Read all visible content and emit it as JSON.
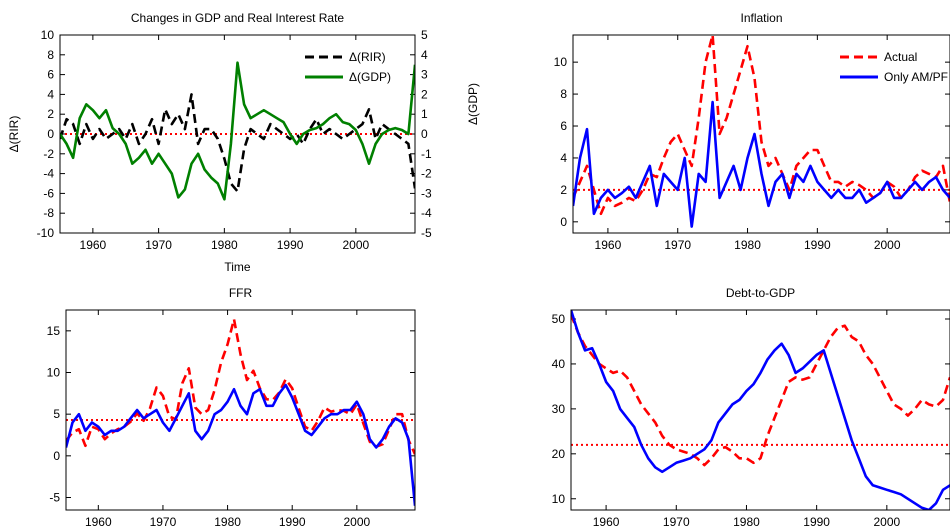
{
  "chart_data": [
    {
      "id": "gdp_rir",
      "type": "line",
      "title": "Changes in GDP and Real Interest Rate",
      "xlabel": "Time",
      "ylabel": "Δ(RIR)",
      "ylabel_right": "Δ(GDP)",
      "xlim": [
        1955,
        2009
      ],
      "ylim": [
        -10,
        10
      ],
      "ylim_right": [
        -5,
        5
      ],
      "xticks": [
        1960,
        1970,
        1980,
        1990,
        2000
      ],
      "yticks": [
        10,
        8,
        6,
        4,
        2,
        0,
        -2,
        -4,
        -6,
        -8,
        -10
      ],
      "yticks_right": [
        5,
        4,
        3,
        2,
        1,
        0,
        -1,
        -2,
        -3,
        -4,
        -5
      ],
      "legend_position": "top-right",
      "hline": {
        "y": 0,
        "color": "#ff0000",
        "style": "dotted"
      },
      "series": [
        {
          "name": "Δ(RIR)",
          "color": "#000000",
          "style": "dashed",
          "axis": "left",
          "x": [
            1955,
            1956,
            1957,
            1958,
            1959,
            1960,
            1961,
            1962,
            1963,
            1964,
            1965,
            1966,
            1967,
            1968,
            1969,
            1970,
            1971,
            1972,
            1973,
            1974,
            1975,
            1976,
            1977,
            1978,
            1979,
            1980,
            1981,
            1982,
            1983,
            1984,
            1985,
            1986,
            1987,
            1988,
            1989,
            1990,
            1991,
            1992,
            1993,
            1994,
            1995,
            1996,
            1997,
            1998,
            1999,
            2000,
            2001,
            2002,
            2003,
            2004,
            2005,
            2006,
            2007,
            2008,
            2009
          ],
          "values": [
            -0.5,
            1.5,
            1.0,
            -1.0,
            1.0,
            -0.5,
            0.5,
            -0.5,
            0.0,
            0.5,
            -0.5,
            1.0,
            -1.0,
            0.0,
            1.5,
            -1.0,
            2.5,
            1.0,
            2.0,
            0.5,
            4.0,
            -1.0,
            0.5,
            0.5,
            -0.5,
            -2.5,
            -5.0,
            -5.8,
            -1.5,
            0.5,
            0.0,
            -0.5,
            1.0,
            0.5,
            0.0,
            -0.5,
            0.0,
            -1.0,
            0.5,
            1.5,
            0.0,
            0.5,
            0.0,
            -0.5,
            0.0,
            0.5,
            1.0,
            2.5,
            -0.5,
            1.0,
            0.5,
            0.0,
            -0.5,
            -1.0,
            -5.5
          ]
        },
        {
          "name": "Δ(GDP)",
          "color": "#008000",
          "style": "solid",
          "axis": "right",
          "x": [
            1955,
            1956,
            1957,
            1958,
            1959,
            1960,
            1961,
            1962,
            1963,
            1964,
            1965,
            1966,
            1967,
            1968,
            1969,
            1970,
            1971,
            1972,
            1973,
            1974,
            1975,
            1976,
            1977,
            1978,
            1979,
            1980,
            1981,
            1982,
            1983,
            1984,
            1985,
            1986,
            1987,
            1988,
            1989,
            1990,
            1991,
            1992,
            1993,
            1994,
            1995,
            1996,
            1997,
            1998,
            1999,
            2000,
            2001,
            2002,
            2003,
            2004,
            2005,
            2006,
            2007,
            2008,
            2009
          ],
          "values": [
            0.0,
            -0.5,
            -1.2,
            0.8,
            1.5,
            1.2,
            0.8,
            1.2,
            0.3,
            0.0,
            -0.5,
            -1.5,
            -1.2,
            -0.8,
            -1.5,
            -1.0,
            -1.5,
            -2.0,
            -3.2,
            -2.8,
            -1.5,
            -1.0,
            -1.8,
            -2.2,
            -2.5,
            -3.3,
            -0.5,
            3.6,
            1.5,
            0.8,
            1.0,
            1.2,
            1.0,
            0.8,
            0.6,
            0.0,
            -0.5,
            0.0,
            0.2,
            0.3,
            0.5,
            0.8,
            1.0,
            0.6,
            0.5,
            0.2,
            -0.5,
            -1.5,
            -0.5,
            0.0,
            0.2,
            0.3,
            0.2,
            0.0,
            3.5
          ]
        }
      ]
    },
    {
      "id": "inflation",
      "type": "line",
      "title": "Inflation",
      "xlim": [
        1955,
        2009
      ],
      "ylim": [
        -0.7,
        11.7
      ],
      "xticks": [
        1960,
        1970,
        1980,
        1990,
        2000
      ],
      "yticks": [
        0,
        2,
        4,
        6,
        8,
        10
      ],
      "legend_position": "top-right",
      "hline": {
        "y": 2.0,
        "color": "#ff0000",
        "style": "dotted"
      },
      "series": [
        {
          "name": "Actual",
          "color": "#ff0000",
          "style": "dashed",
          "x": [
            1955,
            1956,
            1957,
            1958,
            1959,
            1960,
            1961,
            1962,
            1963,
            1964,
            1965,
            1966,
            1967,
            1968,
            1969,
            1970,
            1971,
            1972,
            1973,
            1974,
            1975,
            1976,
            1977,
            1978,
            1979,
            1980,
            1981,
            1982,
            1983,
            1984,
            1985,
            1986,
            1987,
            1988,
            1989,
            1990,
            1991,
            1992,
            1993,
            1994,
            1995,
            1996,
            1997,
            1998,
            1999,
            2000,
            2001,
            2002,
            2003,
            2004,
            2005,
            2006,
            2007,
            2008,
            2009
          ],
          "values": [
            1.5,
            2.5,
            3.5,
            2.0,
            0.5,
            1.5,
            1.0,
            1.2,
            1.5,
            1.3,
            2.0,
            3.0,
            2.8,
            4.0,
            5.0,
            5.5,
            4.5,
            3.5,
            6.5,
            10.0,
            11.7,
            5.5,
            6.5,
            8.0,
            9.5,
            11.0,
            9.0,
            5.0,
            3.5,
            4.0,
            3.0,
            2.0,
            3.5,
            4.0,
            4.5,
            4.5,
            3.5,
            2.5,
            2.5,
            2.2,
            2.5,
            2.3,
            2.0,
            1.5,
            1.8,
            2.5,
            2.2,
            1.5,
            2.0,
            2.8,
            3.2,
            3.0,
            2.8,
            3.5,
            1.2
          ]
        },
        {
          "name": "Only AM/PF",
          "color": "#0000ff",
          "style": "solid",
          "x": [
            1955,
            1956,
            1957,
            1958,
            1959,
            1960,
            1961,
            1962,
            1963,
            1964,
            1965,
            1966,
            1967,
            1968,
            1969,
            1970,
            1971,
            1972,
            1973,
            1974,
            1975,
            1976,
            1977,
            1978,
            1979,
            1980,
            1981,
            1982,
            1983,
            1984,
            1985,
            1986,
            1987,
            1988,
            1989,
            1990,
            1991,
            1992,
            1993,
            1994,
            1995,
            1996,
            1997,
            1998,
            1999,
            2000,
            2001,
            2002,
            2003,
            2004,
            2005,
            2006,
            2007,
            2008,
            2009
          ],
          "values": [
            1.0,
            4.0,
            5.8,
            0.5,
            1.5,
            2.0,
            1.5,
            1.8,
            2.2,
            1.5,
            2.5,
            3.5,
            1.0,
            3.0,
            2.5,
            2.0,
            4.0,
            -0.3,
            3.0,
            2.5,
            7.5,
            1.5,
            2.5,
            3.5,
            2.0,
            4.0,
            5.5,
            3.0,
            1.0,
            2.5,
            3.0,
            1.5,
            3.0,
            2.5,
            3.5,
            2.5,
            2.0,
            1.5,
            2.0,
            1.5,
            1.5,
            2.0,
            1.2,
            1.5,
            1.8,
            2.5,
            1.5,
            1.5,
            2.0,
            2.5,
            2.0,
            2.5,
            2.8,
            2.0,
            1.5
          ]
        }
      ]
    },
    {
      "id": "ffr",
      "type": "line",
      "title": "FFR",
      "xlim": [
        1955,
        2009
      ],
      "ylim": [
        -6.5,
        17.5
      ],
      "xticks": [
        1960,
        1970,
        1980,
        1990,
        2000
      ],
      "yticks": [
        15,
        10,
        5,
        0,
        -5
      ],
      "hline": {
        "y": 4.3,
        "color": "#ff0000",
        "style": "dotted"
      },
      "series": [
        {
          "name": "",
          "color": "#ff0000",
          "style": "dashed",
          "x": [
            1955,
            1956,
            1957,
            1958,
            1959,
            1960,
            1961,
            1962,
            1963,
            1964,
            1965,
            1966,
            1967,
            1968,
            1969,
            1970,
            1971,
            1972,
            1973,
            1974,
            1975,
            1976,
            1977,
            1978,
            1979,
            1980,
            1981,
            1982,
            1983,
            1984,
            1985,
            1986,
            1987,
            1988,
            1989,
            1990,
            1991,
            1992,
            1993,
            1994,
            1995,
            1996,
            1997,
            1998,
            1999,
            2000,
            2001,
            2002,
            2003,
            2004,
            2005,
            2006,
            2007,
            2008,
            2009
          ],
          "values": [
            1.8,
            2.8,
            3.2,
            1.2,
            3.5,
            3.2,
            2.0,
            2.7,
            3.2,
            3.5,
            4.1,
            5.1,
            4.2,
            5.7,
            8.2,
            7.2,
            4.7,
            4.4,
            8.7,
            10.5,
            5.8,
            5.0,
            5.5,
            7.9,
            11.2,
            13.4,
            16.4,
            12.2,
            9.1,
            10.2,
            8.1,
            6.8,
            6.7,
            7.6,
            9.2,
            8.1,
            5.7,
            3.5,
            3.0,
            4.2,
            5.8,
            5.3,
            5.5,
            5.4,
            5.0,
            6.2,
            3.9,
            1.7,
            1.1,
            1.4,
            3.2,
            5.0,
            5.0,
            1.9,
            0.2
          ]
        },
        {
          "name": "",
          "color": "#0000ff",
          "style": "solid",
          "x": [
            1955,
            1956,
            1957,
            1958,
            1959,
            1960,
            1961,
            1962,
            1963,
            1964,
            1965,
            1966,
            1967,
            1968,
            1969,
            1970,
            1971,
            1972,
            1973,
            1974,
            1975,
            1976,
            1977,
            1978,
            1979,
            1980,
            1981,
            1982,
            1983,
            1984,
            1985,
            1986,
            1987,
            1988,
            1989,
            1990,
            1991,
            1992,
            1993,
            1994,
            1995,
            1996,
            1997,
            1998,
            1999,
            2000,
            2001,
            2002,
            2003,
            2004,
            2005,
            2006,
            2007,
            2008,
            2009
          ],
          "values": [
            1.0,
            4.0,
            5.0,
            3.0,
            4.0,
            3.5,
            2.5,
            3.0,
            3.0,
            3.5,
            4.5,
            5.5,
            4.5,
            5.0,
            5.5,
            4.0,
            3.0,
            4.5,
            6.0,
            7.5,
            3.0,
            2.0,
            3.0,
            5.0,
            5.5,
            6.5,
            8.0,
            6.0,
            5.0,
            7.5,
            8.0,
            6.0,
            6.0,
            7.5,
            8.5,
            7.0,
            5.0,
            3.0,
            2.5,
            3.5,
            4.5,
            5.0,
            5.0,
            5.5,
            5.5,
            6.5,
            5.0,
            2.0,
            1.0,
            2.0,
            3.5,
            4.5,
            4.0,
            2.0,
            -6.0
          ]
        }
      ]
    },
    {
      "id": "debt",
      "type": "line",
      "title": "Debt-to-GDP",
      "xlim": [
        1955,
        2009
      ],
      "ylim": [
        7.5,
        52
      ],
      "xticks": [
        1960,
        1970,
        1980,
        1990,
        2000
      ],
      "yticks": [
        50,
        40,
        30,
        20,
        10
      ],
      "hline": {
        "y": 22,
        "color": "#ff0000",
        "style": "dotted"
      },
      "series": [
        {
          "name": "",
          "color": "#ff0000",
          "style": "dashed",
          "x": [
            1955,
            1956,
            1957,
            1958,
            1959,
            1960,
            1961,
            1962,
            1963,
            1964,
            1965,
            1966,
            1967,
            1968,
            1969,
            1970,
            1971,
            1972,
            1973,
            1974,
            1975,
            1976,
            1977,
            1978,
            1979,
            1980,
            1981,
            1982,
            1983,
            1984,
            1985,
            1986,
            1987,
            1988,
            1989,
            1990,
            1991,
            1992,
            1993,
            1994,
            1995,
            1996,
            1997,
            1998,
            1999,
            2000,
            2001,
            2002,
            2003,
            2004,
            2005,
            2006,
            2007,
            2008,
            2009
          ],
          "values": [
            51.0,
            47.0,
            44.0,
            42.0,
            40.0,
            39.0,
            38.0,
            38.5,
            37.0,
            34.0,
            31.0,
            29.0,
            27.0,
            24.0,
            22.0,
            21.0,
            20.5,
            20.0,
            19.0,
            17.5,
            19.0,
            21.0,
            21.5,
            20.5,
            19.0,
            19.0,
            18.0,
            19.0,
            24.0,
            28.0,
            32.0,
            36.0,
            37.0,
            36.5,
            37.0,
            40.0,
            43.0,
            46.0,
            48.0,
            48.5,
            46.0,
            45.0,
            42.0,
            40.0,
            37.0,
            34.0,
            31.0,
            30.0,
            28.5,
            30.0,
            32.0,
            31.0,
            30.5,
            32.0,
            37.0
          ]
        },
        {
          "name": "",
          "color": "#0000ff",
          "style": "solid",
          "x": [
            1955,
            1956,
            1957,
            1958,
            1959,
            1960,
            1961,
            1962,
            1963,
            1964,
            1965,
            1966,
            1967,
            1968,
            1969,
            1970,
            1971,
            1972,
            1973,
            1974,
            1975,
            1976,
            1977,
            1978,
            1979,
            1980,
            1981,
            1982,
            1983,
            1984,
            1985,
            1986,
            1987,
            1988,
            1989,
            1990,
            1991,
            1992,
            1993,
            1994,
            1995,
            1996,
            1997,
            1998,
            1999,
            2000,
            2001,
            2002,
            2003,
            2004,
            2005,
            2006,
            2007,
            2008,
            2009
          ],
          "values": [
            52.0,
            47.0,
            43.0,
            43.5,
            40.0,
            36.0,
            34.0,
            30.0,
            28.0,
            26.0,
            22.0,
            19.0,
            17.0,
            16.0,
            17.0,
            18.0,
            18.5,
            19.0,
            20.0,
            21.0,
            23.0,
            27.0,
            29.0,
            31.0,
            32.0,
            34.0,
            35.5,
            38.0,
            41.0,
            43.0,
            44.5,
            42.0,
            38.0,
            39.0,
            40.5,
            42.0,
            43.0,
            38.0,
            33.0,
            28.0,
            23.0,
            19.0,
            15.0,
            13.0,
            12.5,
            12.0,
            11.5,
            11.0,
            10.0,
            9.0,
            8.0,
            7.5,
            9.0,
            12.0,
            13.0
          ]
        }
      ]
    }
  ]
}
